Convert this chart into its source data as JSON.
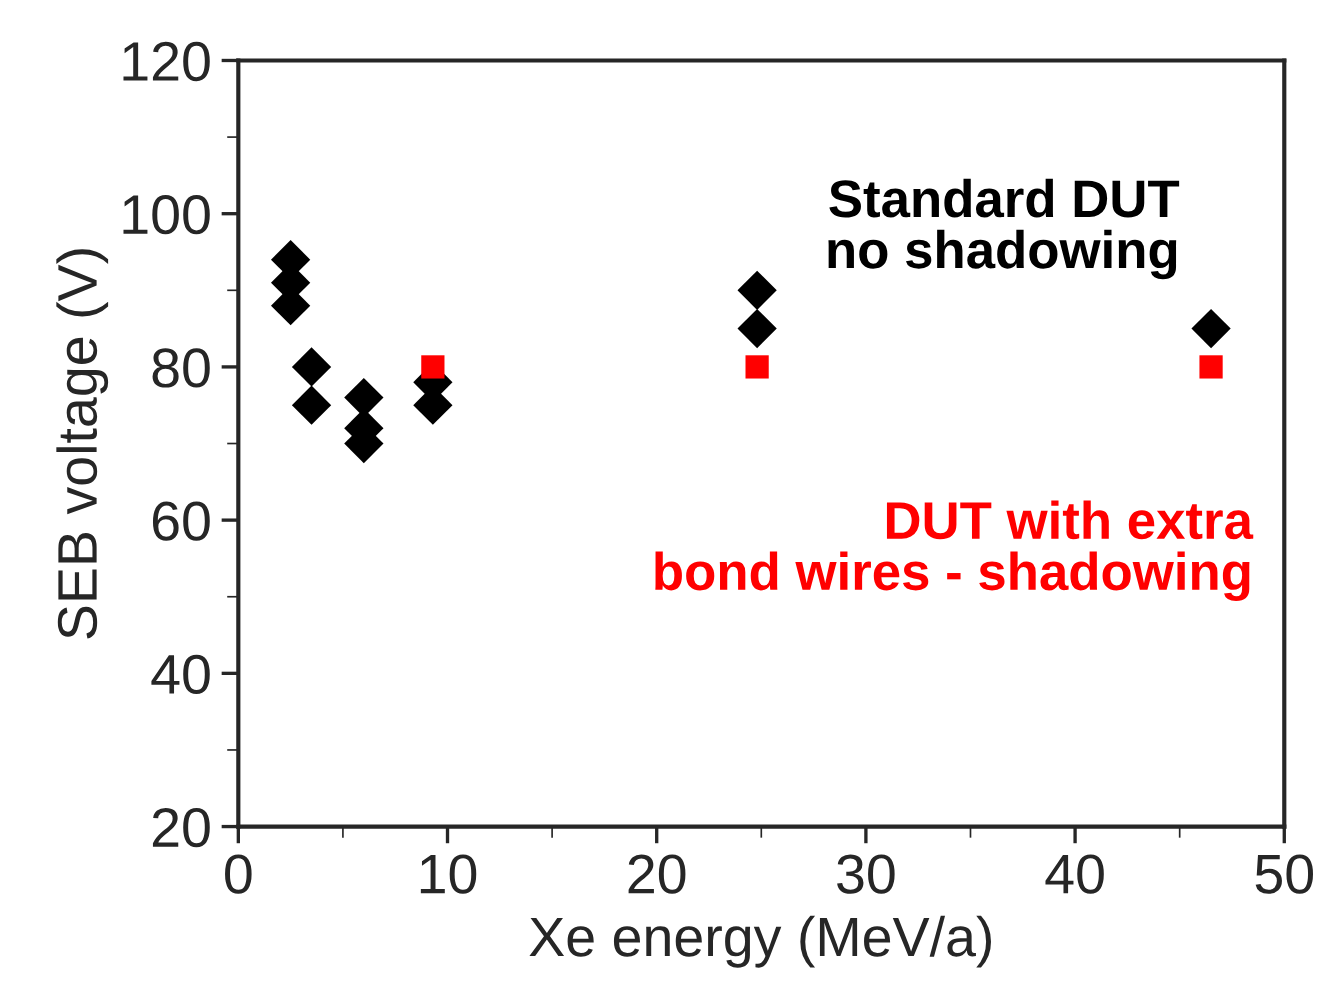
{
  "chart_data": {
    "type": "scatter",
    "xlabel": "Xe energy (MeV/a)",
    "ylabel": "SEB voltage (V)",
    "xlim": [
      0,
      50
    ],
    "xticks": [
      0,
      10,
      20,
      30,
      40,
      50
    ],
    "ylim": [
      20,
      120
    ],
    "yticks": [
      20,
      40,
      60,
      80,
      100,
      120
    ],
    "grid": false,
    "series": [
      {
        "color": "#000000",
        "marker": "diamond",
        "x": [
          2.5,
          2.5,
          2.5,
          3.5,
          3.5,
          6,
          6,
          6,
          9.3,
          9.3,
          24.8,
          24.8,
          46.5
        ],
        "values": [
          94,
          91,
          88,
          80,
          75,
          76,
          72,
          70,
          78,
          75,
          90,
          85,
          85
        ]
      },
      {
        "color": "#ff0000",
        "marker": "square",
        "x": [
          9.3,
          24.8,
          46.5
        ],
        "values": [
          80,
          80,
          80
        ]
      }
    ],
    "annotations": [
      "Standard DUT\nno shadowing",
      "DUT with extra\n   bond wires - shadowing"
    ]
  }
}
